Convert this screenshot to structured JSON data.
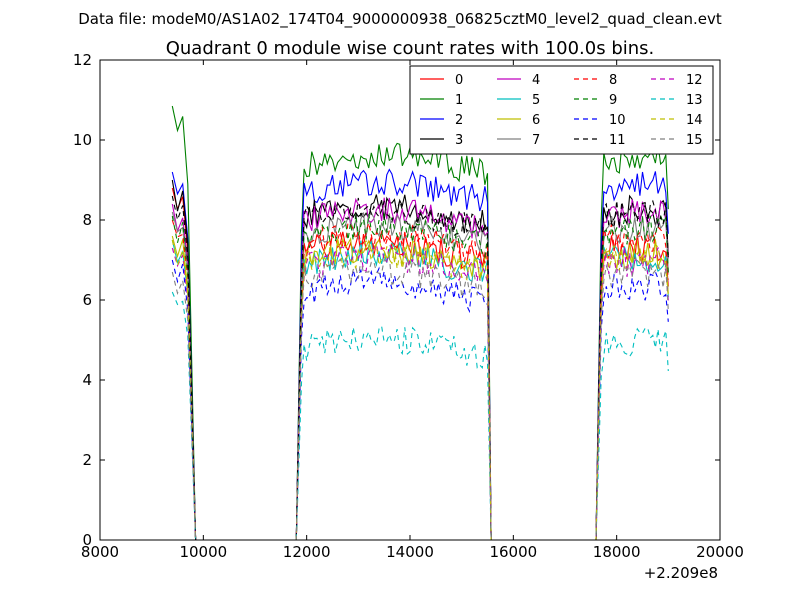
{
  "suptitle": "Data file: modeM0/AS1A02_174T04_9000000938_06825cztM0_level2_quad_clean.evt",
  "chart_data": {
    "type": "line",
    "title": "Quadrant 0 module wise count rates with 100.0s bins.",
    "xlabel": "",
    "ylabel": "",
    "xlim": [
      8000,
      20000
    ],
    "ylim": [
      0,
      12
    ],
    "xticks": [
      8000,
      10000,
      12000,
      14000,
      16000,
      18000,
      20000
    ],
    "xtick_labels": [
      "8000",
      "10000",
      "12000",
      "14000",
      "16000",
      "18000",
      "20000"
    ],
    "yticks": [
      0,
      2,
      4,
      6,
      8,
      10,
      12
    ],
    "ytick_labels": [
      "0",
      "2",
      "4",
      "6",
      "8",
      "10",
      "12"
    ],
    "x_offset_label": "+2.209e8",
    "grid": false,
    "legend_position": "top-right",
    "legend_columns": 4,
    "segments": [
      {
        "t_start": 9400,
        "t_end": 9700
      },
      {
        "t_start": 11900,
        "t_end": 15500
      },
      {
        "t_start": 17700,
        "t_end": 19000
      }
    ],
    "series": [
      {
        "name": "0",
        "color": "#ff0000",
        "dash": "solid",
        "level": 7.2,
        "first_value": 8.8
      },
      {
        "name": "1",
        "color": "#008000",
        "dash": "solid",
        "level": 9.4,
        "first_value": 10.85
      },
      {
        "name": "2",
        "color": "#0000ff",
        "dash": "solid",
        "level": 8.7,
        "first_value": 9.2
      },
      {
        "name": "3",
        "color": "#000000",
        "dash": "solid",
        "level": 8.1,
        "first_value": 9.0
      },
      {
        "name": "4",
        "color": "#bf00bf",
        "dash": "solid",
        "level": 8.0,
        "first_value": 8.4
      },
      {
        "name": "5",
        "color": "#00bfbf",
        "dash": "solid",
        "level": 6.9,
        "first_value": 7.5
      },
      {
        "name": "6",
        "color": "#bfbf00",
        "dash": "solid",
        "level": 7.0,
        "first_value": 7.6
      },
      {
        "name": "7",
        "color": "#808080",
        "dash": "solid",
        "level": 7.6,
        "first_value": 8.2
      },
      {
        "name": "8",
        "color": "#ff0000",
        "dash": "dashed",
        "level": 7.4,
        "first_value": 8.0
      },
      {
        "name": "9",
        "color": "#008000",
        "dash": "dashed",
        "level": 7.6,
        "first_value": 8.1
      },
      {
        "name": "10",
        "color": "#0000ff",
        "dash": "dashed",
        "level": 6.2,
        "first_value": 7.0
      },
      {
        "name": "11",
        "color": "#000000",
        "dash": "dashed",
        "level": 8.0,
        "first_value": 8.6
      },
      {
        "name": "12",
        "color": "#bf00bf",
        "dash": "dashed",
        "level": 6.8,
        "first_value": 7.3
      },
      {
        "name": "13",
        "color": "#00bfbf",
        "dash": "dashed",
        "level": 4.8,
        "first_value": 6.2
      },
      {
        "name": "14",
        "color": "#bfbf00",
        "dash": "dashed",
        "level": 6.9,
        "first_value": 7.5
      },
      {
        "name": "15",
        "color": "#808080",
        "dash": "dashed",
        "level": 6.5,
        "first_value": 6.7
      }
    ]
  }
}
